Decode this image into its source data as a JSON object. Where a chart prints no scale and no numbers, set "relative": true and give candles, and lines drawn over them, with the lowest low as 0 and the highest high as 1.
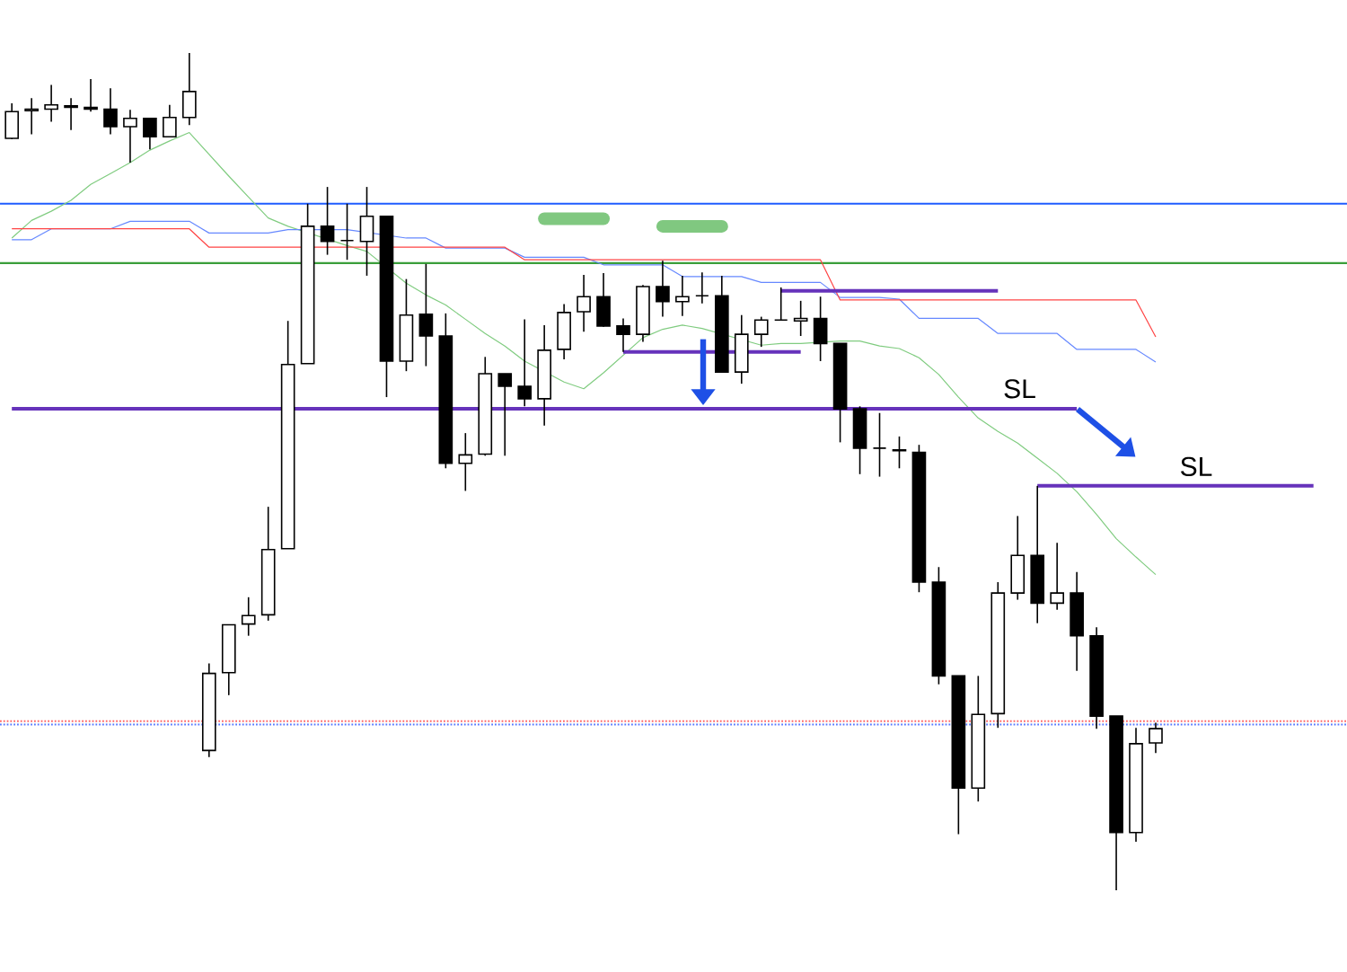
{
  "chart_data": {
    "type": "candlestick",
    "relative": true,
    "categories": [
      null,
      null,
      null,
      null,
      null,
      null,
      null,
      null,
      null,
      null,
      null,
      null,
      null,
      null,
      null,
      null,
      null,
      null,
      null,
      null,
      null,
      null,
      null,
      null,
      null,
      null,
      null,
      null,
      null,
      null,
      null,
      null,
      null,
      null,
      null,
      null,
      null,
      null,
      null,
      null,
      null,
      null,
      null,
      null,
      null,
      null,
      null,
      null,
      null,
      null,
      null,
      null,
      null,
      null,
      null,
      null,
      null,
      null,
      null,
      null,
      null,
      null,
      null,
      null,
      null,
      null,
      null,
      null
    ],
    "ohlc": [
      [
        0.898,
        0.94,
        0.897,
        0.93
      ],
      [
        0.931,
        0.946,
        0.903,
        0.933
      ],
      [
        0.933,
        0.962,
        0.918,
        0.938
      ],
      [
        0.937,
        0.946,
        0.908,
        0.935
      ],
      [
        0.935,
        0.969,
        0.93,
        0.933
      ],
      [
        0.933,
        0.958,
        0.903,
        0.912
      ],
      [
        0.912,
        0.932,
        0.869,
        0.922
      ],
      [
        0.922,
        0.922,
        0.885,
        0.9
      ],
      [
        0.9,
        0.938,
        0.9,
        0.923
      ],
      [
        0.923,
        1.0,
        0.914,
        0.954
      ],
      [
        0.167,
        0.271,
        0.159,
        0.259
      ],
      [
        0.26,
        0.317,
        0.233,
        0.317
      ],
      [
        0.318,
        0.35,
        0.304,
        0.328
      ],
      [
        0.329,
        0.458,
        0.322,
        0.407
      ],
      [
        0.408,
        0.68,
        0.408,
        0.628
      ],
      [
        0.629,
        0.82,
        0.629,
        0.793
      ],
      [
        0.793,
        0.84,
        0.759,
        0.775
      ],
      [
        0.776,
        0.82,
        0.753,
        0.776
      ],
      [
        0.775,
        0.84,
        0.734,
        0.805
      ],
      [
        0.805,
        0.805,
        0.589,
        0.632
      ],
      [
        0.632,
        0.73,
        0.62,
        0.687
      ],
      [
        0.688,
        0.748,
        0.626,
        0.662
      ],
      [
        0.662,
        0.689,
        0.504,
        0.51
      ],
      [
        0.51,
        0.546,
        0.477,
        0.52
      ],
      [
        0.521,
        0.637,
        0.519,
        0.617
      ],
      [
        0.617,
        0.617,
        0.519,
        0.602
      ],
      [
        0.602,
        0.682,
        0.578,
        0.587
      ],
      [
        0.587,
        0.675,
        0.555,
        0.645
      ],
      [
        0.646,
        0.7,
        0.634,
        0.69
      ],
      [
        0.691,
        0.735,
        0.667,
        0.709
      ],
      [
        0.709,
        0.737,
        0.673,
        0.674
      ],
      [
        0.674,
        0.683,
        0.643,
        0.664
      ],
      [
        0.664,
        0.723,
        0.655,
        0.721
      ],
      [
        0.721,
        0.752,
        0.685,
        0.703
      ],
      [
        0.703,
        0.734,
        0.686,
        0.709
      ],
      [
        0.71,
        0.738,
        0.701,
        0.71
      ],
      [
        0.71,
        0.734,
        0.619,
        0.619
      ],
      [
        0.619,
        0.687,
        0.605,
        0.664
      ],
      [
        0.664,
        0.685,
        0.649,
        0.681
      ],
      [
        0.681,
        0.72,
        0.681,
        0.681
      ],
      [
        0.68,
        0.704,
        0.662,
        0.683
      ],
      [
        0.683,
        0.709,
        0.632,
        0.653
      ],
      [
        0.653,
        0.653,
        0.535,
        0.575
      ],
      [
        0.575,
        0.578,
        0.497,
        0.528
      ],
      [
        0.528,
        0.57,
        0.494,
        0.528
      ],
      [
        0.526,
        0.542,
        0.504,
        0.525
      ],
      [
        0.523,
        0.532,
        0.356,
        0.368
      ],
      [
        0.368,
        0.386,
        0.246,
        0.256
      ],
      [
        0.256,
        0.256,
        0.067,
        0.122
      ],
      [
        0.122,
        0.256,
        0.106,
        0.21
      ],
      [
        0.211,
        0.368,
        0.194,
        0.355
      ],
      [
        0.355,
        0.447,
        0.347,
        0.4
      ],
      [
        0.4,
        0.483,
        0.319,
        0.343
      ],
      [
        0.343,
        0.415,
        0.335,
        0.355
      ],
      [
        0.355,
        0.38,
        0.262,
        0.304
      ],
      [
        0.304,
        0.314,
        0.193,
        0.208
      ],
      [
        0.208,
        0.208,
        0.0,
        0.069
      ],
      [
        0.069,
        0.194,
        0.058,
        0.175
      ],
      [
        0.176,
        0.2,
        0.164,
        0.193
      ],
      null,
      null,
      null,
      null,
      null,
      null,
      null,
      null,
      null
    ],
    "series": [
      {
        "type": "line",
        "color": "#80cc80",
        "values": [
          0.779,
          0.8,
          0.811,
          0.824,
          0.843,
          0.856,
          0.869,
          0.884,
          0.895,
          0.905,
          0.879,
          0.853,
          0.828,
          0.803,
          0.793,
          null,
          null,
          0.77,
          0.763,
          null,
          0.725,
          0.711,
          0.699,
          0.682,
          0.665,
          0.65,
          0.632,
          null,
          0.607,
          0.599,
          0.618,
          0.639,
          0.66,
          0.67,
          0.675,
          0.671,
          null,
          null,
          0.651,
          0.653,
          0.653,
          null,
          0.656,
          0.656,
          0.65,
          0.647,
          0.636,
          0.616,
          0.589,
          0.564,
          0.548,
          0.534,
          0.516,
          0.498,
          0.476,
          0.449,
          0.42,
          0.398,
          0.377,
          null,
          null,
          null,
          null,
          null,
          null,
          null,
          null,
          null
        ]
      },
      {
        "type": "line",
        "color": "#6688ff",
        "values": [
          0.777,
          0.777,
          0.79,
          null,
          null,
          0.79,
          0.799,
          0.799,
          0.799,
          0.799,
          0.785,
          0.785,
          0.785,
          0.785,
          0.789,
          null,
          null,
          0.789,
          null,
          null,
          0.779,
          0.779,
          0.767,
          0.767,
          0.767,
          0.767,
          0.756,
          0.756,
          0.756,
          0.756,
          0.747,
          0.747,
          0.747,
          0.747,
          0.733,
          0.733,
          0.733,
          0.733,
          0.726,
          0.726,
          0.726,
          0.726,
          0.708,
          0.708,
          0.708,
          0.706,
          0.683,
          0.683,
          0.683,
          0.683,
          0.665,
          0.665,
          0.665,
          0.665,
          0.646,
          0.646,
          0.646,
          0.646,
          0.631,
          null,
          null,
          null,
          null,
          null,
          null,
          null,
          null,
          null
        ]
      },
      {
        "type": "line",
        "color": "#ff4444",
        "values": [
          0.79,
          0.79,
          0.79,
          0.79,
          0.79,
          0.79,
          0.79,
          0.79,
          0.79,
          0.79,
          0.768,
          0.768,
          0.768,
          0.768,
          0.768,
          null,
          0.768,
          0.768,
          0.768,
          null,
          0.768,
          0.768,
          0.768,
          0.768,
          0.768,
          0.768,
          0.753,
          0.753,
          0.753,
          0.753,
          0.753,
          0.753,
          0.753,
          0.753,
          0.753,
          0.753,
          0.753,
          0.753,
          0.753,
          0.753,
          0.753,
          0.753,
          0.705,
          0.705,
          0.705,
          0.705,
          0.705,
          0.705,
          0.705,
          0.705,
          0.705,
          0.705,
          0.705,
          0.705,
          0.705,
          0.705,
          0.705,
          0.705,
          0.661,
          null,
          null,
          null,
          null,
          null,
          null,
          null,
          null,
          null
        ]
      },
      {
        "type": "line",
        "color": "#6633bb",
        "values": [
          0.575,
          0.575,
          0.575,
          0.575,
          0.575,
          0.575,
          0.575,
          0.575,
          0.575,
          0.575,
          0.575,
          0.575,
          0.575,
          0.575,
          null,
          0.575,
          0.575,
          0.575,
          0.575,
          0.575,
          0.575,
          0.575,
          null,
          0.575,
          null,
          0.575,
          0.575,
          0.575,
          0.575,
          0.575,
          0.575,
          0.575,
          0.575,
          0.575,
          0.575,
          0.575,
          0.575,
          0.575,
          0.575,
          0.575,
          0.575,
          0.575,
          0.575,
          0.575,
          0.575,
          0.575,
          0.575,
          0.575,
          0.575,
          0.575,
          0.575,
          0.575,
          0.575,
          0.575,
          0.575,
          null,
          null,
          null,
          null,
          null,
          null,
          null,
          null,
          null,
          null,
          null,
          null,
          null
        ]
      },
      {
        "type": "line",
        "color": "#6633bb",
        "values": [
          null,
          null,
          null,
          null,
          null,
          null,
          null,
          null,
          null,
          null,
          null,
          null,
          null,
          null,
          null,
          null,
          null,
          null,
          null,
          null,
          null,
          null,
          null,
          null,
          null,
          null,
          null,
          null,
          null,
          null,
          null,
          0.643,
          0.643,
          0.643,
          0.643,
          0.643,
          null,
          null,
          0.643,
          0.643,
          0.643,
          null,
          null,
          null,
          null,
          null,
          null,
          null,
          null,
          null,
          null,
          null,
          null,
          null,
          null,
          null,
          null,
          null,
          null,
          null,
          null,
          null,
          null,
          null,
          null,
          null,
          null,
          null
        ]
      },
      {
        "type": "line",
        "color": "#6633bb",
        "values": [
          null,
          null,
          null,
          null,
          null,
          null,
          null,
          null,
          null,
          null,
          null,
          null,
          null,
          null,
          null,
          null,
          null,
          null,
          null,
          null,
          null,
          null,
          null,
          null,
          null,
          null,
          null,
          null,
          null,
          null,
          null,
          null,
          null,
          null,
          null,
          null,
          null,
          null,
          null,
          0.716,
          0.716,
          0.716,
          0.716,
          0.716,
          0.716,
          0.716,
          0.716,
          0.716,
          0.716,
          0.716,
          0.716,
          null,
          null,
          null,
          null,
          null,
          null,
          null,
          null,
          null,
          null,
          null,
          null,
          null,
          null,
          null,
          null,
          null
        ]
      },
      {
        "type": "line",
        "color": "#6633bb",
        "values": [
          null,
          null,
          null,
          null,
          null,
          null,
          null,
          null,
          null,
          null,
          null,
          null,
          null,
          null,
          null,
          null,
          null,
          null,
          null,
          null,
          null,
          null,
          null,
          null,
          null,
          null,
          null,
          null,
          null,
          null,
          null,
          null,
          null,
          null,
          null,
          null,
          null,
          null,
          null,
          null,
          null,
          null,
          null,
          null,
          null,
          null,
          null,
          null,
          null,
          null,
          null,
          null,
          0.483,
          0.483,
          0.483,
          0.483,
          0.483,
          0.483,
          0.483,
          0.483,
          0.483,
          0.483,
          0.483,
          0.483,
          0.483,
          0.483,
          0.483,
          null
        ]
      },
      {
        "type": "line",
        "color": "#80c880",
        "values": [
          null,
          null,
          null,
          null,
          null,
          null,
          null,
          null,
          null,
          null,
          null,
          null,
          null,
          null,
          null,
          null,
          null,
          null,
          null,
          null,
          null,
          null,
          null,
          null,
          null,
          null,
          null,
          0.802,
          0.802,
          0.802,
          0.802,
          null,
          null,
          null,
          null,
          null,
          null,
          null,
          null,
          null,
          null,
          null,
          null,
          null,
          null,
          null,
          null,
          null,
          null,
          null,
          null,
          null,
          null,
          null,
          null,
          null,
          null,
          null,
          null,
          null,
          null,
          null,
          null,
          null,
          null,
          null,
          null,
          null
        ]
      },
      {
        "type": "line",
        "color": "#80c880",
        "values": [
          null,
          null,
          null,
          null,
          null,
          null,
          null,
          null,
          null,
          null,
          null,
          null,
          null,
          null,
          null,
          null,
          null,
          null,
          null,
          null,
          null,
          null,
          null,
          null,
          null,
          null,
          null,
          null,
          null,
          null,
          null,
          null,
          null,
          0.793,
          0.793,
          0.793,
          0.793,
          null,
          null,
          null,
          null,
          null,
          null,
          null,
          null,
          null,
          null,
          null,
          null,
          null,
          null,
          null,
          null,
          null,
          null,
          null,
          null,
          null,
          null,
          null,
          null,
          null,
          null,
          null,
          null,
          null,
          null,
          null
        ]
      }
    ],
    "ref_lines": [
      {
        "axis": "y",
        "value": 0.82,
        "color": "#1f5cff",
        "line_style": "solid"
      },
      {
        "axis": "y",
        "value": 0.749,
        "color": "#3a9e3a",
        "line_style": "solid"
      },
      {
        "axis": "y",
        "value": 0.202,
        "color": "#ff6666",
        "line_style": "dotted"
      },
      {
        "axis": "y",
        "value": 0.198,
        "color": "#5577ff",
        "line_style": "dotted"
      }
    ],
    "annotations": [
      "SL",
      "SL"
    ]
  }
}
